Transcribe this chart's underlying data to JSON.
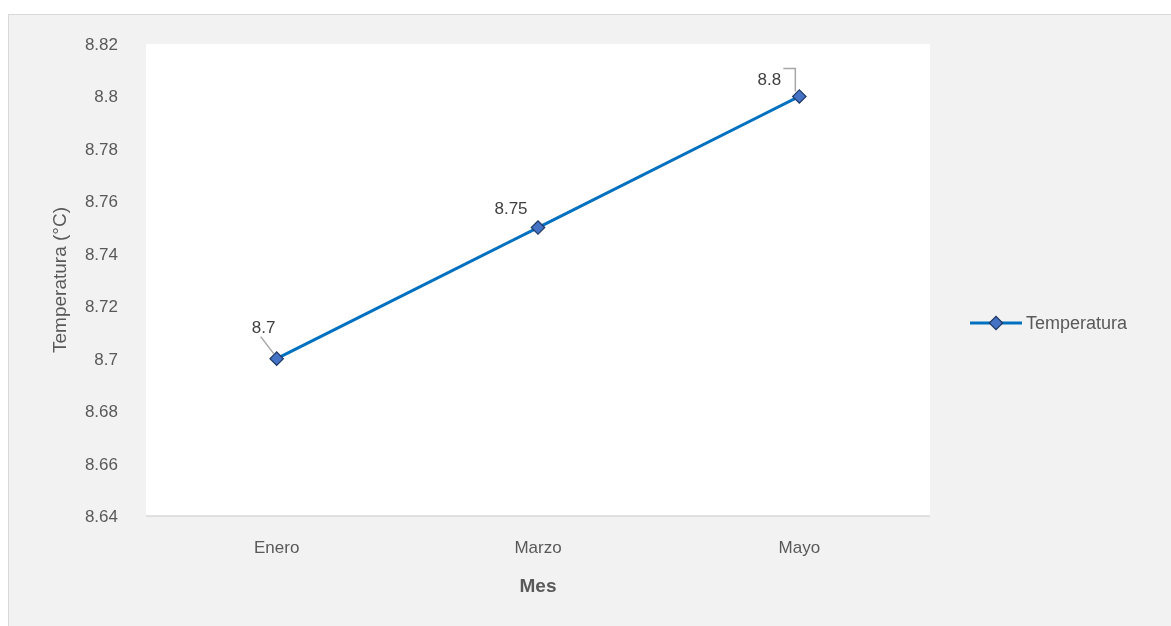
{
  "chart_data": {
    "type": "line",
    "xlabel": "Mes",
    "ylabel": "Temperatura (°C)",
    "categories": [
      "Enero",
      "Marzo",
      "Mayo"
    ],
    "series": [
      {
        "name": "Temperatura",
        "color": "#0070c0",
        "values": [
          8.7,
          8.75,
          8.8
        ]
      }
    ],
    "ylim": [
      8.64,
      8.82
    ],
    "yticks": [
      8.64,
      8.66,
      8.68,
      8.7,
      8.72,
      8.74,
      8.76,
      8.78,
      8.8,
      8.82
    ],
    "marker": "diamond",
    "data_labels": true,
    "legend": "right",
    "grid": false
  }
}
